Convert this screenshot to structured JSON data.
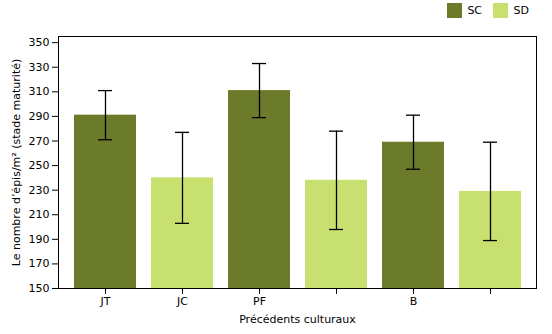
{
  "chart_data": {
    "type": "bar",
    "categories": [
      "JT",
      "JC",
      "PF",
      null,
      "B",
      null
    ],
    "series": [
      {
        "name": "SC",
        "color": "#6B7B2A",
        "values": [
          291,
          null,
          311,
          null,
          269,
          null
        ],
        "errors": [
          20,
          null,
          22,
          null,
          22,
          null
        ]
      },
      {
        "name": "SD",
        "color": "#c8e070",
        "values": [
          null,
          240,
          null,
          238,
          null,
          229
        ],
        "errors": [
          null,
          37,
          null,
          40,
          null,
          40
        ]
      }
    ],
    "xlabel": "Précédents culturaux",
    "ylabel": "Le nombre d’épis/m² (stade maturité)",
    "ylim": [
      150,
      355
    ],
    "yticks": [
      150,
      170,
      190,
      210,
      230,
      250,
      270,
      290,
      310,
      330,
      350
    ],
    "legend": "upper right",
    "grid": false
  }
}
